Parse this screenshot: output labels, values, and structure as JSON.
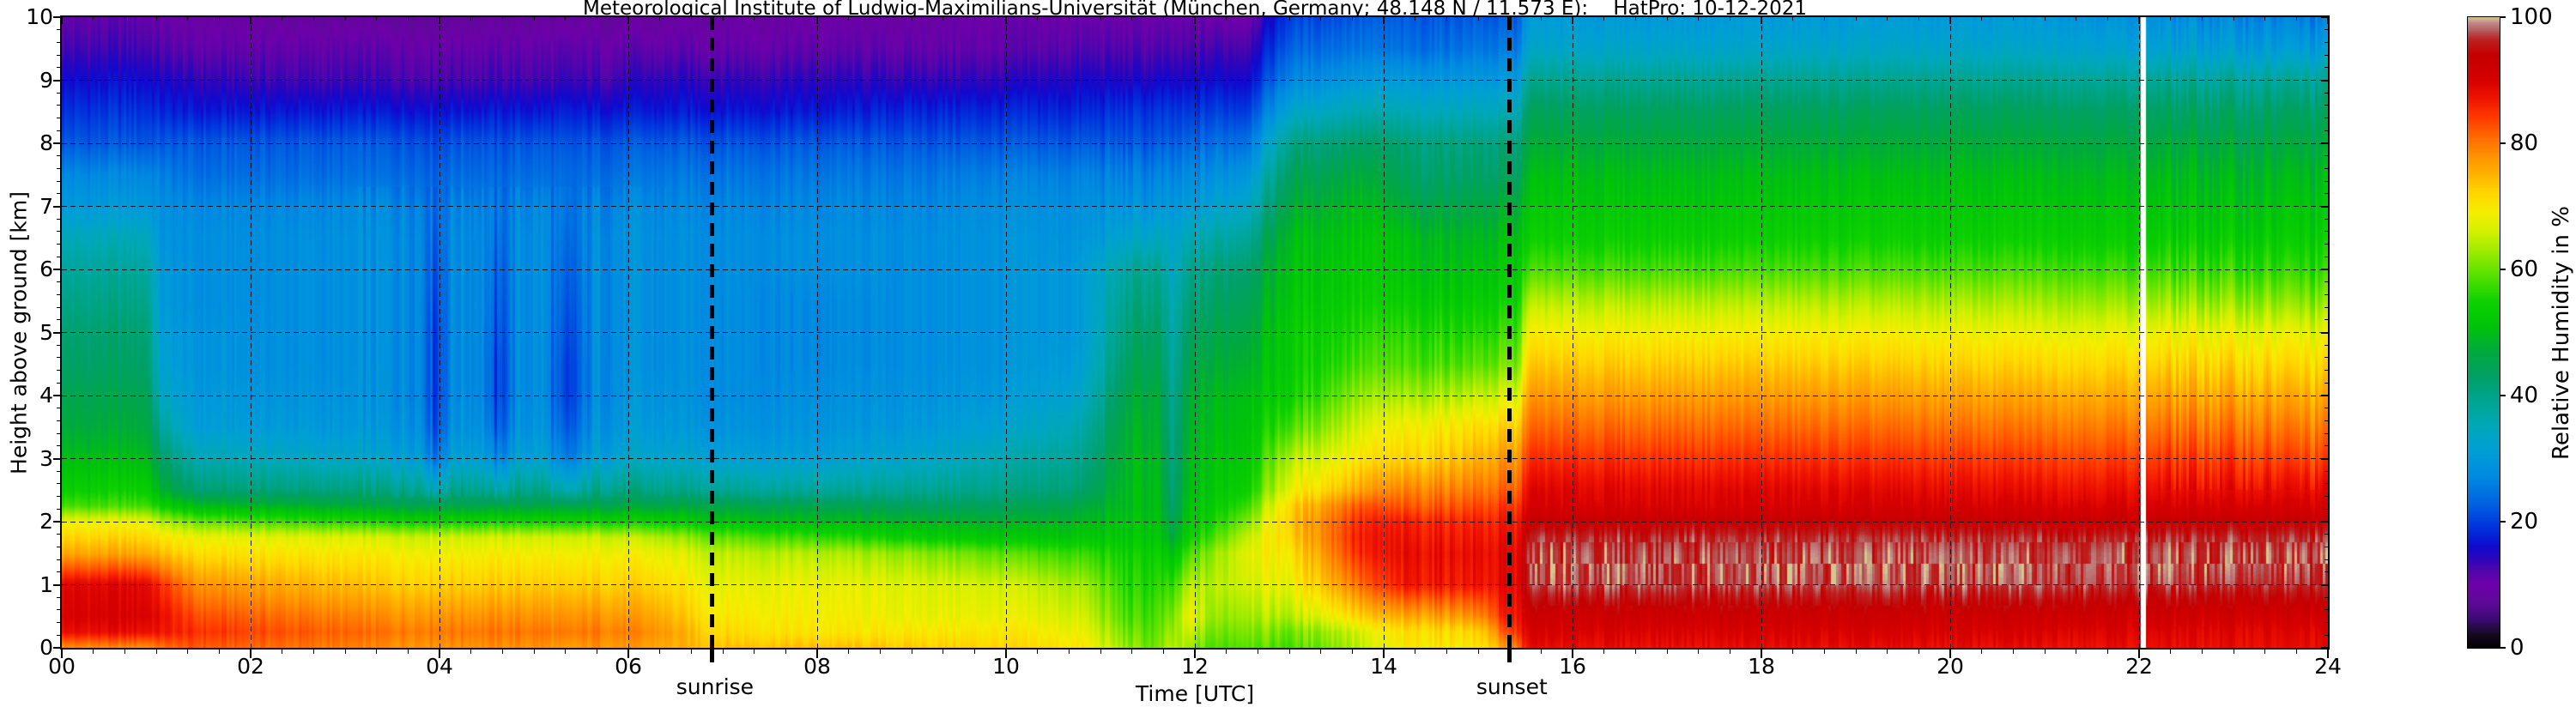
{
  "figure": {
    "title": "Meteorological Institute of Ludwig-Maximilians-Universität (München, Germany; 48.148 N / 11.573 E):    HatPro: 10-12-2021",
    "xlabel": "Time [UTC]",
    "ylabel": "Height above ground [km]",
    "colorbar_label": "Relative Humidity in %",
    "sunrise_label": "sunrise",
    "sunset_label": "sunset"
  },
  "chart_data": {
    "type": "heatmap",
    "title": "Meteorological Institute of Ludwig-Maximilians-Universität (München, Germany; 48.148 N / 11.573 E):    HatPro: 10-12-2021",
    "xlabel": "Time [UTC]",
    "ylabel": "Height above ground [km]",
    "xlim": [
      0,
      24
    ],
    "ylim": [
      0,
      10
    ],
    "grid": true,
    "x_ticks": [
      {
        "label": "00",
        "value": 0
      },
      {
        "label": "02",
        "value": 2
      },
      {
        "label": "04",
        "value": 4
      },
      {
        "label": "06",
        "value": 6
      },
      {
        "label": "08",
        "value": 8
      },
      {
        "label": "10",
        "value": 10
      },
      {
        "label": "12",
        "value": 12
      },
      {
        "label": "14",
        "value": 14
      },
      {
        "label": "16",
        "value": 16
      },
      {
        "label": "18",
        "value": 18
      },
      {
        "label": "20",
        "value": 20
      },
      {
        "label": "22",
        "value": 22
      },
      {
        "label": "24",
        "value": 24
      }
    ],
    "y_ticks": [
      {
        "label": "0",
        "value": 0
      },
      {
        "label": "1",
        "value": 1
      },
      {
        "label": "2",
        "value": 2
      },
      {
        "label": "3",
        "value": 3
      },
      {
        "label": "4",
        "value": 4
      },
      {
        "label": "5",
        "value": 5
      },
      {
        "label": "6",
        "value": 6
      },
      {
        "label": "7",
        "value": 7
      },
      {
        "label": "8",
        "value": 8
      },
      {
        "label": "9",
        "value": 9
      },
      {
        "label": "10",
        "value": 10
      }
    ],
    "colorbar": {
      "label": "Relative Humidity in %",
      "ticks": [
        0,
        20,
        40,
        60,
        80,
        100
      ],
      "range": [
        0,
        100
      ],
      "stops": [
        [
          0,
          "#000000"
        ],
        [
          2,
          "#140a1e"
        ],
        [
          4.5,
          "#3c0a73"
        ],
        [
          7,
          "#5c0a96"
        ],
        [
          10,
          "#6e00aa"
        ],
        [
          12,
          "#5505aa"
        ],
        [
          14,
          "#2e05b9"
        ],
        [
          16,
          "#0f0ace"
        ],
        [
          19,
          "#0032dc"
        ],
        [
          23,
          "#0064e1"
        ],
        [
          27,
          "#0089e1"
        ],
        [
          31,
          "#009ed7"
        ],
        [
          35,
          "#00a8b9"
        ],
        [
          39,
          "#00a591"
        ],
        [
          43,
          "#00a066"
        ],
        [
          47,
          "#00aa3c"
        ],
        [
          51,
          "#00c30a"
        ],
        [
          55,
          "#0fd200"
        ],
        [
          59,
          "#55e100"
        ],
        [
          63,
          "#a0eb00"
        ],
        [
          66,
          "#d2f000"
        ],
        [
          69,
          "#f5ee00"
        ],
        [
          72,
          "#ffd700"
        ],
        [
          75,
          "#ffb300"
        ],
        [
          78,
          "#ff9100"
        ],
        [
          81,
          "#ff6900"
        ],
        [
          84,
          "#ff3c00"
        ],
        [
          87,
          "#f01400"
        ],
        [
          90,
          "#d70000"
        ],
        [
          94,
          "#c40000"
        ],
        [
          96.5,
          "#bc2323"
        ],
        [
          97.8,
          "#b45a5a"
        ],
        [
          99,
          "#c28787"
        ],
        [
          99.6,
          "#ccaa88"
        ],
        [
          100,
          "#d5c591"
        ]
      ]
    },
    "markers": [
      {
        "label": "sunrise",
        "time_utc": 6.89
      },
      {
        "label": "sunset",
        "time_utc": 15.33
      }
    ],
    "data_gaps": [
      {
        "start": 22.02,
        "end": 22.07
      }
    ],
    "heights_km": [
      0,
      0.25,
      0.5,
      1,
      1.5,
      1.75,
      2,
      2.25,
      2.5,
      3,
      3.5,
      4,
      4.5,
      5,
      5.5,
      6,
      6.5,
      7,
      7.5,
      8,
      8.5,
      9,
      9.5,
      10
    ],
    "time_profiles": [
      {
        "t": 0.0,
        "rh": [
          78,
          88,
          90,
          89,
          76,
          72,
          68,
          58,
          54,
          50,
          47,
          45,
          43,
          42,
          40,
          38,
          35,
          30,
          27,
          22,
          19,
          16,
          13,
          11
        ]
      },
      {
        "t": 0.9,
        "rh": [
          78,
          88,
          90,
          89,
          76,
          72,
          68,
          58,
          54,
          50,
          47,
          45,
          43,
          42,
          40,
          38,
          35,
          30,
          27,
          22,
          19,
          16,
          13,
          11
        ]
      },
      {
        "t": 1.05,
        "rh": [
          80,
          87,
          88,
          85,
          74,
          70,
          64,
          54,
          48,
          43,
          38,
          34,
          32,
          31,
          30,
          30,
          29,
          28,
          26,
          22,
          18,
          15,
          12,
          10
        ]
      },
      {
        "t": 1.4,
        "rh": [
          82,
          85,
          83,
          78,
          71,
          68,
          60,
          50,
          42,
          36,
          31,
          30,
          29,
          29,
          28,
          28,
          28,
          27,
          24,
          22,
          17,
          14,
          11,
          9
        ]
      },
      {
        "t": 2.6,
        "rh": [
          80,
          82,
          80,
          75,
          70,
          67,
          57,
          48,
          41,
          34,
          30,
          29,
          28,
          28,
          28,
          28,
          28,
          27,
          24,
          22,
          17,
          13,
          11,
          8
        ]
      },
      {
        "t": 3.5,
        "rh": [
          78,
          80,
          78,
          73,
          69,
          66,
          55,
          46,
          40,
          32,
          29,
          28,
          28,
          28,
          28,
          28,
          28,
          27,
          24,
          22,
          17,
          13,
          11,
          8
        ]
      },
      {
        "t": 3.8,
        "rh": [
          78,
          80,
          78,
          73,
          69,
          66,
          55,
          46,
          40,
          32,
          29,
          28,
          28,
          28,
          28,
          28,
          28,
          27,
          24,
          22,
          17,
          13,
          11,
          8
        ]
      },
      {
        "t": 3.95,
        "rh": [
          78,
          80,
          78,
          73,
          69,
          66,
          55,
          46,
          36,
          25,
          21,
          20,
          20,
          20,
          21,
          22,
          23,
          24,
          23,
          21,
          17,
          13,
          11,
          8
        ]
      },
      {
        "t": 4.15,
        "rh": [
          78,
          80,
          78,
          73,
          69,
          66,
          55,
          46,
          40,
          32,
          29,
          28,
          28,
          28,
          28,
          28,
          28,
          27,
          24,
          22,
          17,
          13,
          11,
          8
        ]
      },
      {
        "t": 4.45,
        "rh": [
          78,
          80,
          78,
          73,
          69,
          66,
          55,
          46,
          40,
          32,
          29,
          28,
          28,
          28,
          28,
          28,
          28,
          27,
          24,
          22,
          17,
          13,
          11,
          8
        ]
      },
      {
        "t": 4.6,
        "rh": [
          78,
          80,
          78,
          73,
          69,
          66,
          55,
          46,
          36,
          26,
          21,
          19,
          19,
          20,
          21,
          22,
          23,
          24,
          23,
          21,
          17,
          13,
          11,
          8
        ]
      },
      {
        "t": 4.85,
        "rh": [
          78,
          80,
          78,
          73,
          69,
          66,
          55,
          46,
          40,
          32,
          29,
          28,
          28,
          28,
          28,
          28,
          28,
          27,
          24,
          22,
          17,
          13,
          11,
          8
        ]
      },
      {
        "t": 5.1,
        "rh": [
          78,
          80,
          78,
          73,
          69,
          66,
          55,
          46,
          40,
          32,
          29,
          28,
          28,
          28,
          28,
          28,
          28,
          27,
          24,
          22,
          17,
          13,
          11,
          8
        ]
      },
      {
        "t": 5.35,
        "rh": [
          76,
          79,
          77,
          72,
          68,
          65,
          54,
          45,
          34,
          24,
          20,
          18,
          18,
          19,
          20,
          21,
          22,
          23,
          23,
          21,
          17,
          13,
          11,
          8
        ]
      },
      {
        "t": 5.65,
        "rh": [
          78,
          80,
          78,
          73,
          69,
          66,
          55,
          46,
          40,
          32,
          29,
          28,
          28,
          28,
          28,
          28,
          28,
          27,
          24,
          22,
          17,
          13,
          11,
          8
        ]
      },
      {
        "t": 6.3,
        "rh": [
          76,
          78,
          76,
          72,
          68,
          64,
          54,
          46,
          40,
          33,
          30,
          29,
          28,
          28,
          28,
          28,
          28,
          27,
          25,
          22,
          17,
          14,
          11,
          8
        ]
      },
      {
        "t": 6.9,
        "rh": [
          74,
          72,
          70,
          68,
          65,
          60,
          52,
          46,
          39,
          32,
          29,
          28,
          28,
          28,
          28,
          28,
          28,
          27,
          25,
          22,
          17,
          14,
          11,
          9
        ]
      },
      {
        "t": 8.0,
        "rh": [
          74,
          70,
          69,
          68,
          64,
          57,
          50,
          45,
          38,
          31,
          29,
          28,
          27,
          27,
          27,
          28,
          28,
          27,
          25,
          22,
          17,
          14,
          11,
          9
        ]
      },
      {
        "t": 9.0,
        "rh": [
          73,
          70,
          68,
          67,
          62,
          54,
          49,
          44,
          39,
          33,
          30,
          29,
          28,
          28,
          28,
          28,
          28,
          27,
          25,
          22,
          18,
          14,
          11,
          9
        ]
      },
      {
        "t": 10.0,
        "rh": [
          72,
          70,
          68,
          66,
          59,
          52,
          48,
          44,
          40,
          36,
          32,
          30,
          29,
          29,
          29,
          29,
          29,
          28,
          26,
          22,
          18,
          14,
          11,
          10
        ]
      },
      {
        "t": 10.8,
        "rh": [
          70,
          68,
          66,
          63,
          57,
          52,
          49,
          46,
          42,
          39,
          36,
          33,
          31,
          30,
          30,
          30,
          29,
          28,
          26,
          22,
          18,
          15,
          12,
          10
        ]
      },
      {
        "t": 11.3,
        "rh": [
          62,
          60,
          58,
          56,
          54,
          52,
          51,
          50,
          50,
          49,
          48,
          46,
          44,
          42,
          40,
          38,
          33,
          29,
          26,
          22,
          19,
          15,
          12,
          10
        ]
      },
      {
        "t": 11.6,
        "rh": [
          60,
          59,
          58,
          56,
          54,
          52,
          51,
          50,
          50,
          49,
          48,
          47,
          45,
          43,
          41,
          39,
          34,
          29,
          26,
          22,
          19,
          15,
          12,
          10
        ]
      },
      {
        "t": 11.75,
        "rh": [
          64,
          62,
          60,
          56,
          50,
          46,
          44,
          42,
          41,
          40,
          39,
          38,
          37,
          36,
          35,
          33,
          32,
          29,
          26,
          22,
          19,
          15,
          12,
          10
        ]
      },
      {
        "t": 11.95,
        "rh": [
          62,
          65,
          68,
          64,
          58,
          54,
          52,
          51,
          50,
          49,
          48,
          47,
          45,
          43,
          41,
          39,
          35,
          30,
          27,
          23,
          19,
          15,
          12,
          10
        ]
      },
      {
        "t": 12.2,
        "rh": [
          58,
          60,
          62,
          64,
          62,
          58,
          55,
          53,
          52,
          51,
          50,
          49,
          47,
          45,
          43,
          41,
          37,
          32,
          28,
          24,
          20,
          16,
          13,
          10
        ]
      },
      {
        "t": 12.55,
        "rh": [
          60,
          62,
          64,
          67,
          68,
          66,
          62,
          58,
          55,
          53,
          52,
          51,
          49,
          47,
          45,
          43,
          39,
          34,
          30,
          25,
          20,
          16,
          13,
          10
        ]
      },
      {
        "t": 13.0,
        "rh": [
          58,
          60,
          64,
          68,
          70,
          72,
          73,
          72,
          68,
          64,
          58,
          54,
          53,
          53,
          52,
          51,
          50,
          47,
          44,
          40,
          33,
          27,
          23,
          20
        ]
      },
      {
        "t": 13.7,
        "rh": [
          64,
          66,
          72,
          80,
          85,
          86,
          85,
          82,
          76,
          70,
          66,
          62,
          58,
          56,
          54,
          53,
          52,
          50,
          47,
          43,
          36,
          30,
          25,
          22
        ]
      },
      {
        "t": 14.3,
        "rh": [
          70,
          71,
          76,
          87,
          88,
          87,
          86,
          82,
          79,
          72,
          69,
          63,
          58,
          56,
          53,
          51,
          50,
          46,
          43,
          41,
          35,
          30,
          24,
          22
        ]
      },
      {
        "t": 15.0,
        "rh": [
          70,
          72,
          78,
          87,
          88,
          87,
          86,
          83,
          80,
          75,
          71,
          65,
          59,
          56,
          53,
          51,
          49,
          46,
          43,
          41,
          35,
          30,
          25,
          22
        ]
      },
      {
        "t": 15.3,
        "rh": [
          76,
          82,
          86,
          88,
          88,
          87,
          86,
          84,
          81,
          77,
          72,
          66,
          60,
          57,
          54,
          52,
          50,
          47,
          43,
          41,
          35,
          30,
          25,
          22
        ]
      },
      {
        "t": 15.42,
        "rh": [
          80,
          85,
          87,
          88,
          88,
          87,
          86,
          84,
          81,
          77,
          72,
          66,
          60,
          57,
          54,
          52,
          50,
          47,
          43,
          41,
          35,
          30,
          25,
          22
        ]
      },
      {
        "t": 15.52,
        "rh": [
          88,
          90,
          92,
          97,
          97,
          96,
          93,
          90,
          89,
          85,
          81,
          77,
          73,
          69,
          64,
          58,
          54,
          52,
          50,
          47,
          44,
          39,
          33,
          30
        ]
      },
      {
        "t": 18.0,
        "rh": [
          88,
          90,
          92,
          97,
          97,
          96,
          93,
          90,
          89,
          85,
          81,
          77,
          73,
          69,
          64,
          58,
          54,
          52,
          50,
          47,
          44,
          39,
          33,
          30
        ]
      },
      {
        "t": 21.0,
        "rh": [
          88,
          90,
          92,
          97,
          97,
          96,
          93,
          90,
          88,
          84,
          80,
          76,
          72,
          68,
          63,
          58,
          54,
          52,
          50,
          47,
          44,
          39,
          33,
          30
        ]
      },
      {
        "t": 23.0,
        "rh": [
          88,
          89,
          91,
          96,
          97,
          96,
          93,
          90,
          88,
          84,
          80,
          76,
          72,
          68,
          62,
          57,
          53,
          51,
          49,
          46,
          43,
          38,
          31,
          27
        ]
      },
      {
        "t": 24.0,
        "rh": [
          88,
          89,
          91,
          96,
          97,
          96,
          93,
          90,
          88,
          83,
          79,
          75,
          71,
          67,
          61,
          56,
          53,
          51,
          49,
          46,
          43,
          38,
          30,
          25
        ]
      }
    ]
  }
}
